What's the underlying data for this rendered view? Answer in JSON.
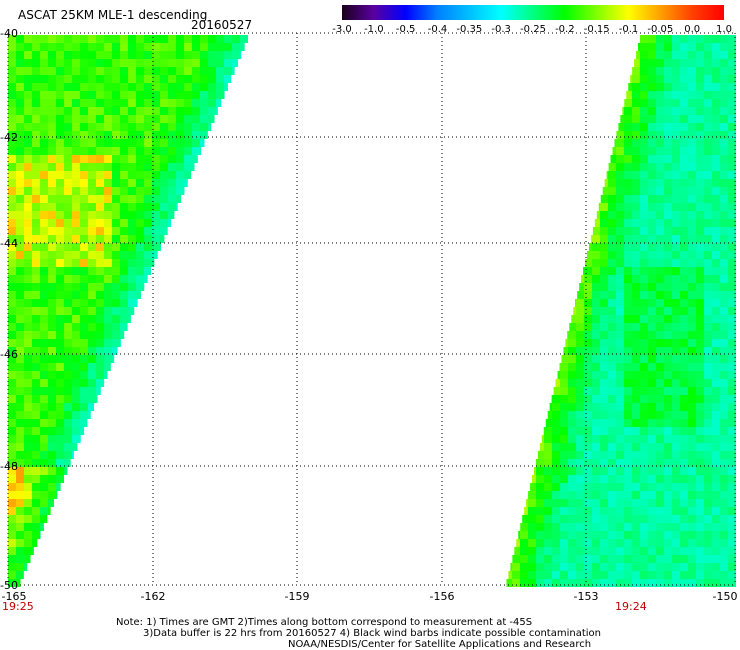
{
  "header": {
    "title": "ASCAT 25KM MLE-1 descending",
    "date": "20160527"
  },
  "colorbar": {
    "labels": [
      "-3.0",
      "-1.0",
      "-0.5",
      "-0.4",
      "-0.35",
      "-0.3",
      "-0.25",
      "-0.2",
      "-0.15",
      "-0.1",
      "-0.05",
      "0.0",
      "1.0"
    ],
    "colors": [
      "#1a001a",
      "#5a00a0",
      "#0000ff",
      "#0080ff",
      "#00c0ff",
      "#00ffff",
      "#00ff80",
      "#00ff00",
      "#80ff00",
      "#ffff00",
      "#ffa000",
      "#ff4000",
      "#ff0000"
    ]
  },
  "map": {
    "lat_labels": [
      "-40",
      "-42",
      "-44",
      "-46",
      "-48",
      "-50"
    ],
    "lon_labels": [
      "-165",
      "-162",
      "-159",
      "-156",
      "-153",
      "-150"
    ],
    "time_labels": [
      "19:25",
      "19:24"
    ]
  },
  "notes": {
    "line1": "Note: 1) Times are GMT 2)Times along bottom correspond to measurement at -45S",
    "line2": "3)Data buffer is 22 hrs from 20160527 4) Black wind barbs indicate possible contamination",
    "line3": "NOAA/NESDIS/Center for Satellite Applications and Research"
  }
}
